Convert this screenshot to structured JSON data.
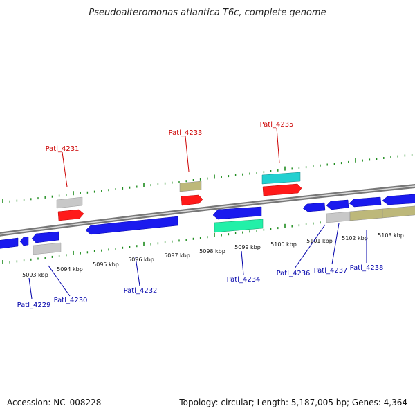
{
  "title": "Pseudoalteromonas atlantica T6c, complete genome",
  "footer": {
    "accession": "Accession: NC_008228",
    "summary": "Topology: circular; Length: 5,187,005 bp; Genes: 4,364"
  },
  "colors": {
    "background": "#ffffff",
    "backbone": "#8a8a8a",
    "ticks": "#1e8c1e",
    "label_forward": "#cc0000",
    "label_reverse": "#0000aa",
    "gene_blue": "#1a1aee",
    "gene_red": "#ff1a1a",
    "gene_grey": "#c8c8c8",
    "gene_khaki": "#bdb87a",
    "gene_cyan": "#22d0d0",
    "gene_mint": "#22f0a8"
  },
  "scale": {
    "unit": "kbp",
    "labels": [
      "5093 kbp",
      "5094 kbp",
      "5095 kbp",
      "5096 kbp",
      "5097 kbp",
      "5098 kbp",
      "5099 kbp",
      "5100 kbp",
      "5101 kbp",
      "5102 kbp",
      "5103 kbp"
    ]
  },
  "gene_labels": {
    "top": [
      "Patl_4231",
      "Patl_4233",
      "Patl_4235"
    ],
    "bottom": [
      "Patl_4229",
      "Patl_4230",
      "Patl_4232",
      "Patl_4234",
      "Patl_4236",
      "Patl_4237",
      "Patl_4238"
    ]
  }
}
